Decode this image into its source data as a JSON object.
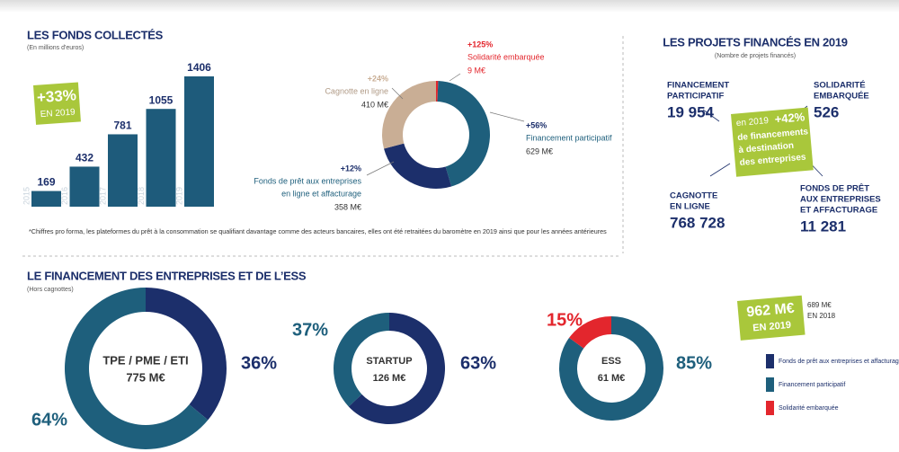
{
  "chart_data": [
    {
      "type": "bar",
      "title": "LES FONDS COLLECTÉS",
      "subtitle": "(En millions d'euros)",
      "categories": [
        "2015",
        "2016",
        "2017",
        "2018",
        "2019"
      ],
      "values": [
        169,
        432,
        781,
        1055,
        1406
      ],
      "color": "#1e5b7b",
      "badge": [
        "+33%",
        "EN 2019"
      ]
    },
    {
      "type": "pie",
      "donut": true,
      "categories": [
        [
          "Solidarité embarquée"
        ],
        [
          "Financement participatif"
        ],
        [
          "Fonds de prêt aux entreprises",
          "en ligne et affacturage"
        ],
        [
          "Cagnotte en ligne"
        ]
      ],
      "values": [
        9,
        629,
        358,
        410
      ],
      "value_labels": [
        "9 M€",
        "629 M€",
        "358 M€",
        "410 M€"
      ],
      "growth": [
        "+125%",
        "+56%",
        "+12%",
        "+24%"
      ],
      "colors": [
        "#e3262d",
        "#1e5f7c",
        "#1c2f6b",
        "#c9ae95"
      ]
    },
    {
      "type": "pie",
      "donut": true,
      "title": "TPE / PME / ETI",
      "total": "775 M€",
      "values": [
        36,
        64
      ],
      "value_labels": [
        "36%",
        "64%"
      ],
      "colors": [
        "#1c2f6b",
        "#1e5f7c"
      ]
    },
    {
      "type": "pie",
      "donut": true,
      "title": "STARTUP",
      "total": "126 M€",
      "values": [
        63,
        37
      ],
      "value_labels": [
        "63%",
        "37%"
      ],
      "colors": [
        "#1c2f6b",
        "#1e5f7c"
      ]
    },
    {
      "type": "pie",
      "donut": true,
      "title": "ESS",
      "total": "61 M€",
      "values": [
        85,
        15
      ],
      "value_labels": [
        "85%",
        "15%"
      ],
      "colors": [
        "#1e5f7c",
        "#e3262d"
      ]
    }
  ],
  "footnote": "*Chiffres pro forma, les plateformes du prêt à la consommation se qualifiant davantage comme des acteurs bancaires, elles ont été retraitées du baromètre en 2019 ainsi que pour les années antérieures",
  "projects": {
    "title": "LES PROJETS FINANCÉS EN 2019",
    "subtitle": "(Nombre de projets financés)",
    "items": [
      {
        "label": [
          "FINANCEMENT",
          "PARTICIPATIF"
        ],
        "value": "19 954"
      },
      {
        "label": [
          "SOLIDARITÉ",
          "EMBARQUÉE"
        ],
        "value": "526"
      },
      {
        "label": [
          "CAGNOTTE",
          "EN LIGNE"
        ],
        "value": "768 728"
      },
      {
        "label": [
          "FONDS DE PRÊT",
          "AUX ENTREPRISES",
          "ET AFFACTURAGE"
        ],
        "value": "11 281"
      }
    ],
    "center": {
      "year": "en 2019",
      "growth": "+42%",
      "text": [
        "de financements",
        "à destination",
        "des entreprises"
      ]
    }
  },
  "financing": {
    "title": "LE FINANCEMENT DES ENTREPRISES ET DE L’ESS",
    "subtitle": "(Hors cagnottes)",
    "badge": {
      "value": "962 M€",
      "year": "EN 2019",
      "previous": "689 M€",
      "previous_year": "EN 2018"
    },
    "legend": [
      {
        "name": "Fonds de prêt aux entreprises et affacturage",
        "color": "#1c2f6b"
      },
      {
        "name": "Financement participatif",
        "color": "#1e5f7c"
      },
      {
        "name": "Solidarité embarquée",
        "color": "#e3262d"
      }
    ]
  }
}
